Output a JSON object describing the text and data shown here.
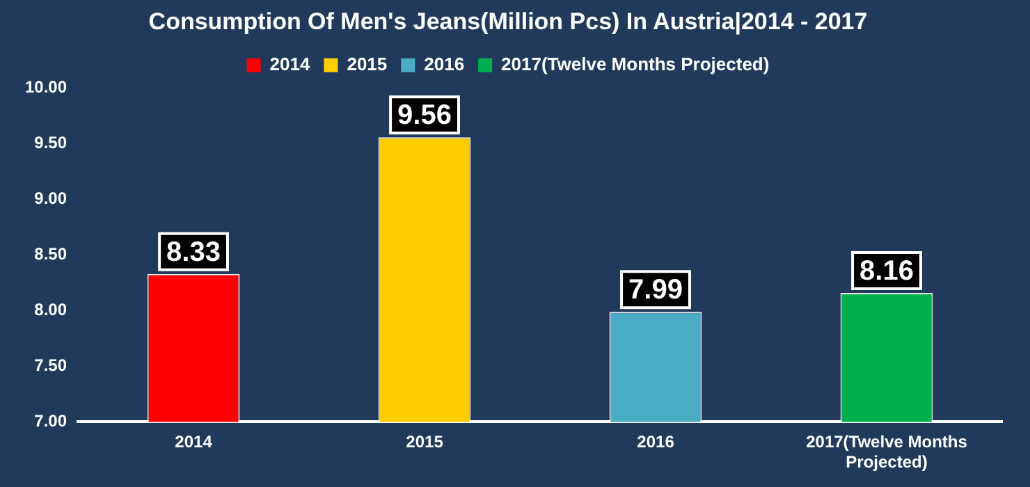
{
  "chart_data": {
    "type": "bar",
    "title": "Consumption Of Men's Jeans(Million Pcs) In Austria|2014 - 2017",
    "categories": [
      "2014",
      "2015",
      "2016",
      "2017(Twelve Months Projected)"
    ],
    "series": [
      {
        "name": "2014",
        "color": "#ff0000",
        "values": [
          8.33,
          null,
          null,
          null
        ]
      },
      {
        "name": "2015",
        "color": "#ffcc00",
        "values": [
          null,
          9.56,
          null,
          null
        ]
      },
      {
        "name": "2016",
        "color": "#4bacc6",
        "values": [
          null,
          null,
          7.99,
          null
        ]
      },
      {
        "name": "2017(Twelve Months Projected)",
        "color": "#00b050",
        "values": [
          null,
          null,
          null,
          8.16
        ]
      }
    ],
    "ylim": [
      7,
      10
    ],
    "yticks": [
      {
        "value": 7,
        "label": "7.00"
      },
      {
        "value": 7.5,
        "label": "7.50"
      },
      {
        "value": 8,
        "label": "8.00"
      },
      {
        "value": 8.5,
        "label": "8.50"
      },
      {
        "value": 9,
        "label": "9.00"
      },
      {
        "value": 9.5,
        "label": "9.50"
      },
      {
        "value": 10,
        "label": "10.00"
      }
    ],
    "grid": false,
    "legend": "top",
    "data_labels": true
  }
}
